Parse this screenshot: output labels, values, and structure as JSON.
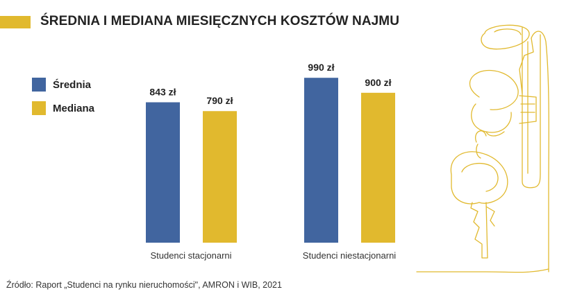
{
  "title": "ŚREDNIA I MEDIANA MIESIĘCZNYCH KOSZTÓW NAJMU",
  "legend": [
    {
      "label": "Średnia",
      "color": "#41659f"
    },
    {
      "label": "Mediana",
      "color": "#e1b92e"
    }
  ],
  "chart_data": {
    "type": "bar",
    "categories": [
      "Studenci stacjonarni",
      "Studenci niestacjonarni"
    ],
    "series": [
      {
        "name": "Średnia",
        "values": [
          843,
          990
        ],
        "labels": [
          "843 zł",
          "990 zł"
        ],
        "color": "#41659f"
      },
      {
        "name": "Mediana",
        "values": [
          790,
          900
        ],
        "labels": [
          "790 zł",
          "900 zł"
        ],
        "color": "#e1b92e"
      }
    ],
    "ylim": [
      0,
      1000
    ],
    "grid": false,
    "legend_position": "left"
  },
  "source": "Źródło: Raport „Studenci na rynku nieruchomości\", AMRON i WIB, 2021",
  "decoration": {
    "icon": "keys-line-art-icon",
    "color": "#e1b92e"
  }
}
